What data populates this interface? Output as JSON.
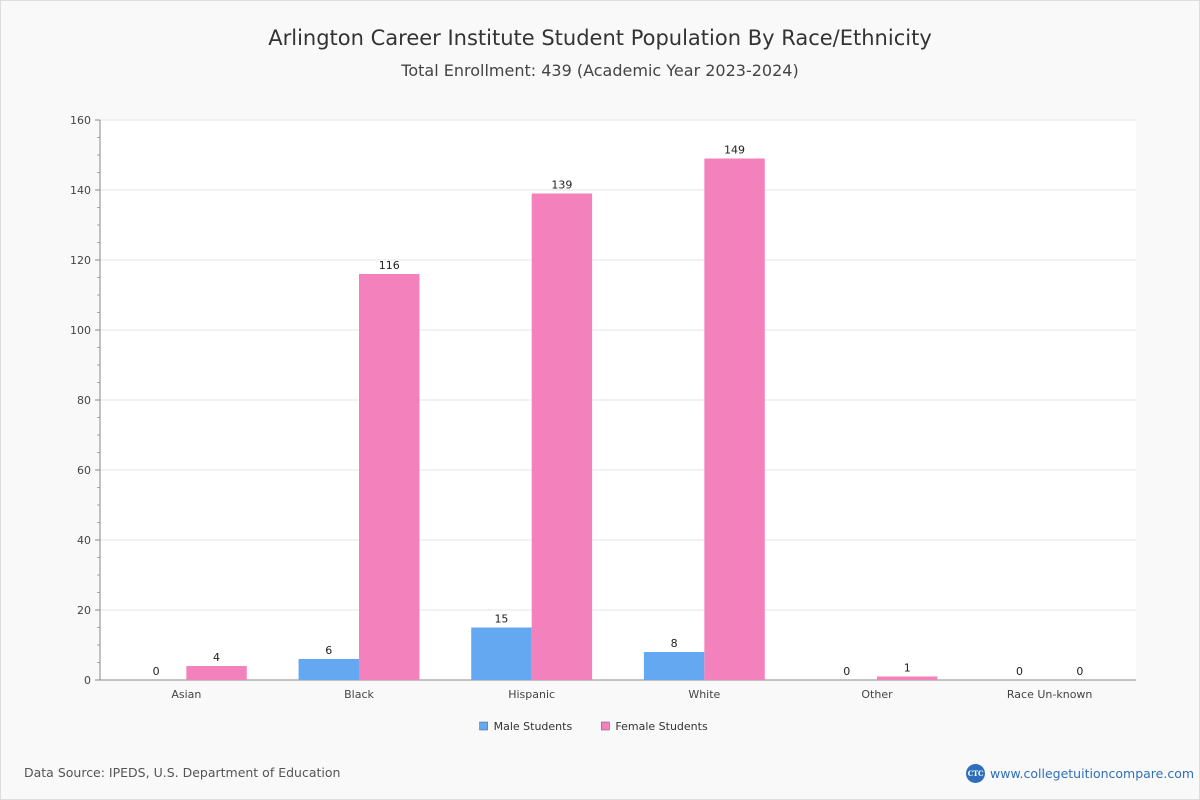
{
  "chart_data": {
    "type": "bar",
    "title": "Arlington Career Institute Student Population By Race/Ethnicity",
    "subtitle": "Total Enrollment: 439 (Academic Year 2023-2024)",
    "categories": [
      "Asian",
      "Black",
      "Hispanic",
      "White",
      "Other",
      "Race Un-known"
    ],
    "series": [
      {
        "name": "Male Students",
        "color": "#64a8f2",
        "values": [
          0,
          6,
          15,
          8,
          0,
          0
        ]
      },
      {
        "name": "Female Students",
        "color": "#f382bc",
        "values": [
          4,
          116,
          139,
          149,
          1,
          0
        ]
      }
    ],
    "ylim": [
      0,
      160
    ],
    "yticks": [
      0,
      20,
      40,
      60,
      80,
      100,
      120,
      140,
      160
    ],
    "xlabel": "",
    "ylabel": "",
    "grid": true,
    "legend": "bottom-center"
  },
  "footer": {
    "source": "Data Source: IPEDS, U.S. Department of Education",
    "logo_text": "CTC",
    "site": "www.collegetuitioncompare.com"
  }
}
